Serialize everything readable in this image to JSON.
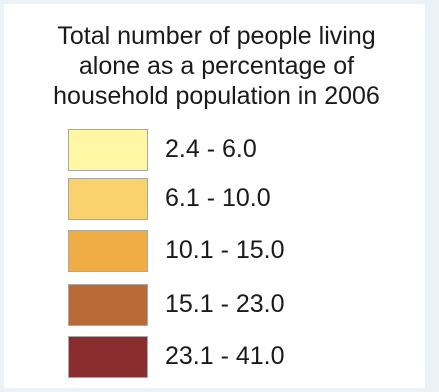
{
  "legend": {
    "title": "Total number of people living\nalone as a percentage of\nhousehold population in 2006",
    "classes": [
      {
        "label": "2.4 - 6.0",
        "color": "#fff7a3"
      },
      {
        "label": "6.1 - 10.0",
        "color": "#f9d26d"
      },
      {
        "label": "10.1 - 15.0",
        "color": "#f0ac45"
      },
      {
        "label": "15.1 - 23.0",
        "color": "#b96a36"
      },
      {
        "label": "23.1 - 41.0",
        "color": "#8a2b2e"
      }
    ]
  }
}
